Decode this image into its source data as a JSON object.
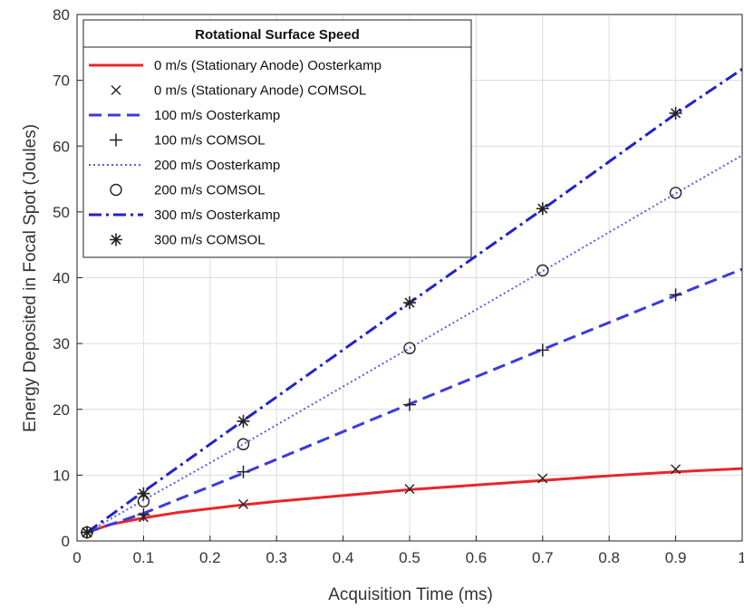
{
  "chart_data": {
    "type": "line",
    "xlabel": "Acquisition Time (ms)",
    "ylabel": "Energy Deposited in Focal Spot (Joules)",
    "xlim": [
      0,
      1
    ],
    "ylim": [
      0,
      80
    ],
    "xticks": [
      "0",
      "0.1",
      "0.2",
      "0.3",
      "0.4",
      "0.5",
      "0.6",
      "0.7",
      "0.8",
      "0.9",
      "1"
    ],
    "yticks": [
      "0",
      "10",
      "20",
      "30",
      "40",
      "50",
      "60",
      "70",
      "80"
    ],
    "grid": true,
    "legend": {
      "title": "Rotational Surface Speed",
      "position": "top-left"
    },
    "series": [
      {
        "name": "0 m/s (Stationary Anode) Oosterkamp",
        "kind": "line",
        "color": "#e8262a",
        "dash": "solid",
        "x": [
          0.015,
          0.05,
          0.1,
          0.15,
          0.2,
          0.25,
          0.3,
          0.4,
          0.5,
          0.6,
          0.7,
          0.8,
          0.9,
          1.0
        ],
        "y": [
          1.3,
          2.5,
          3.5,
          4.3,
          4.9,
          5.5,
          6.0,
          6.9,
          7.8,
          8.5,
          9.2,
          9.9,
          10.5,
          11.0
        ]
      },
      {
        "name": "0 m/s (Stationary Anode) COMSOL",
        "kind": "markers",
        "marker": "x",
        "color": "#222222",
        "x": [
          0.015,
          0.1,
          0.25,
          0.5,
          0.7,
          0.9
        ],
        "y": [
          1.3,
          3.6,
          5.6,
          7.9,
          9.5,
          10.9
        ]
      },
      {
        "name": "100 m/s Oosterkamp",
        "kind": "line",
        "color": "#3a3ae0",
        "dash": "dashed",
        "x": [
          0.015,
          0.1,
          0.25,
          0.5,
          0.7,
          0.9,
          1.0
        ],
        "y": [
          1.3,
          4.2,
          10.3,
          20.8,
          29.1,
          37.3,
          41.3
        ]
      },
      {
        "name": "100 m/s COMSOL",
        "kind": "markers",
        "marker": "plus",
        "color": "#222222",
        "x": [
          0.015,
          0.1,
          0.25,
          0.5,
          0.7,
          0.9
        ],
        "y": [
          1.3,
          4.0,
          10.5,
          20.7,
          29.0,
          37.4
        ]
      },
      {
        "name": "200 m/s Oosterkamp",
        "kind": "line",
        "color": "#5a5af0",
        "dash": "dotted",
        "x": [
          0.015,
          0.1,
          0.25,
          0.5,
          0.7,
          0.9,
          1.0
        ],
        "y": [
          1.3,
          6.2,
          14.7,
          29.3,
          41.0,
          52.8,
          58.6
        ]
      },
      {
        "name": "200 m/s COMSOL",
        "kind": "markers",
        "marker": "circle",
        "color": "#222222",
        "x": [
          0.015,
          0.1,
          0.25,
          0.5,
          0.7,
          0.9
        ],
        "y": [
          1.3,
          6.0,
          14.7,
          29.3,
          41.1,
          52.9
        ]
      },
      {
        "name": "300 m/s Oosterkamp",
        "kind": "line",
        "color": "#2222cc",
        "dash": "dashdot",
        "x": [
          0.015,
          0.1,
          0.25,
          0.5,
          0.7,
          0.9,
          1.0
        ],
        "y": [
          1.3,
          7.5,
          18.3,
          36.2,
          50.4,
          64.9,
          71.7
        ]
      },
      {
        "name": "300 m/s COMSOL",
        "kind": "markers",
        "marker": "star",
        "color": "#222222",
        "x": [
          0.015,
          0.1,
          0.25,
          0.5,
          0.7,
          0.9
        ],
        "y": [
          1.3,
          7.2,
          18.2,
          36.2,
          50.5,
          65.0
        ]
      }
    ]
  }
}
